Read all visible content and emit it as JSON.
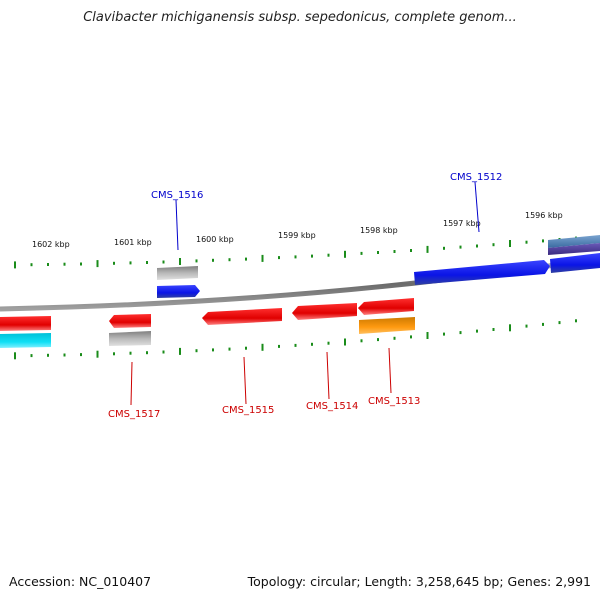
{
  "header": {
    "title": "Clavibacter michiganensis subsp. sepedonicus, complete genom..."
  },
  "footer": {
    "accession_label": "Accession: NC_010407",
    "summary": "Topology: circular; Length: 3,258,645 bp; Genes: 2,991"
  },
  "map": {
    "tick_labels": [
      "1602 kbp",
      "1601 kbp",
      "1600 kbp",
      "1599 kbp",
      "1598 kbp",
      "1597 kbp",
      "1596 kbp"
    ],
    "gene_labels": {
      "forward": [
        "CMS_1516",
        "CMS_1512"
      ],
      "reverse": [
        "CMS_1517",
        "CMS_1515",
        "CMS_1514",
        "CMS_1513"
      ]
    },
    "colors": {
      "forward_label": "#0000cc",
      "reverse_label": "#cc0000",
      "tick": "#1a8c1a",
      "backbone": "#888888",
      "cds_blue": "#0a14e6",
      "cds_red": "#ee0a0a",
      "cds_orange": "#ff9a10",
      "cds_cyan": "#10e0f5",
      "cds_grey": "#b8b8b8",
      "cds_steel": "#4a7ab0",
      "cds_purple": "#5a4aa0"
    }
  }
}
